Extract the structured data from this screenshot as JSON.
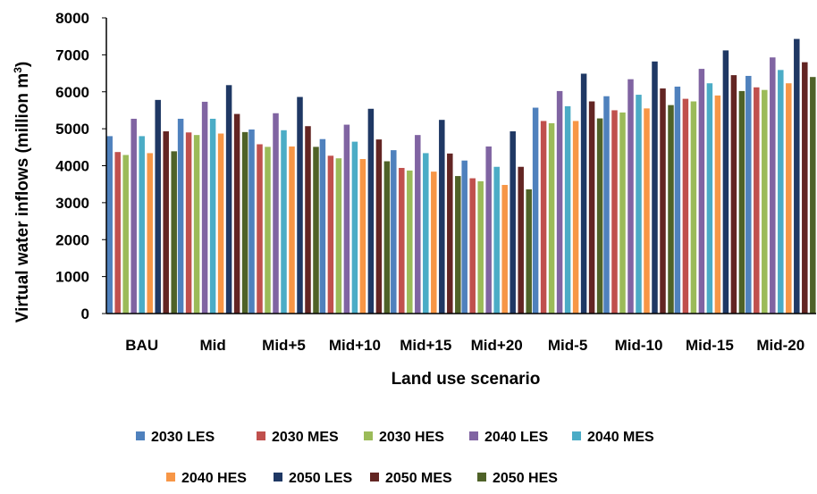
{
  "chart_data": {
    "type": "bar",
    "title": "",
    "xlabel": "Land use scenario",
    "ylabel_main": "Virtual water inflows (million m",
    "ylabel_sup": "3",
    "ylabel_end": ")",
    "ylim": [
      0,
      8000
    ],
    "yticks": [
      0,
      1000,
      2000,
      3000,
      4000,
      5000,
      6000,
      7000,
      8000
    ],
    "grid": false,
    "legend_position": "bottom",
    "categories": [
      "BAU",
      "Mid",
      "Mid+5",
      "Mid+10",
      "Mid+15",
      "Mid+20",
      "Mid-5",
      "Mid-10",
      "Mid-15",
      "Mid-20"
    ],
    "series": [
      {
        "name": "2030 LES",
        "color": "#4f81bd",
        "values": [
          4800,
          5270,
          4980,
          4720,
          4420,
          4140,
          5570,
          5880,
          6140,
          6430
        ]
      },
      {
        "name": "2030 MES",
        "color": "#c0504d",
        "values": [
          4370,
          4900,
          4580,
          4270,
          3940,
          3660,
          5210,
          5500,
          5810,
          6120
        ]
      },
      {
        "name": "2030 HES",
        "color": "#9bbb59",
        "values": [
          4290,
          4830,
          4510,
          4200,
          3870,
          3580,
          5150,
          5440,
          5740,
          6050
        ]
      },
      {
        "name": "2040 LES",
        "color": "#8064a2",
        "values": [
          5270,
          5730,
          5420,
          5110,
          4830,
          4520,
          6020,
          6340,
          6620,
          6930
        ]
      },
      {
        "name": "2040 MES",
        "color": "#4bacc6",
        "values": [
          4800,
          5270,
          4960,
          4650,
          4340,
          3970,
          5610,
          5920,
          6230,
          6590
        ]
      },
      {
        "name": "2040 HES",
        "color": "#f79646",
        "values": [
          4340,
          4870,
          4520,
          4180,
          3840,
          3480,
          5210,
          5550,
          5900,
          6230
        ]
      },
      {
        "name": "2050 LES",
        "color": "#1f3864",
        "values": [
          5780,
          6180,
          5860,
          5540,
          5240,
          4930,
          6490,
          6820,
          7120,
          7430
        ]
      },
      {
        "name": "2050 MES",
        "color": "#632523",
        "values": [
          4930,
          5400,
          5070,
          4710,
          4330,
          3970,
          5740,
          6090,
          6450,
          6800
        ]
      },
      {
        "name": "2050 HES",
        "color": "#4f6228",
        "values": [
          4390,
          4910,
          4510,
          4120,
          3720,
          3360,
          5280,
          5640,
          6020,
          6400
        ]
      }
    ]
  }
}
